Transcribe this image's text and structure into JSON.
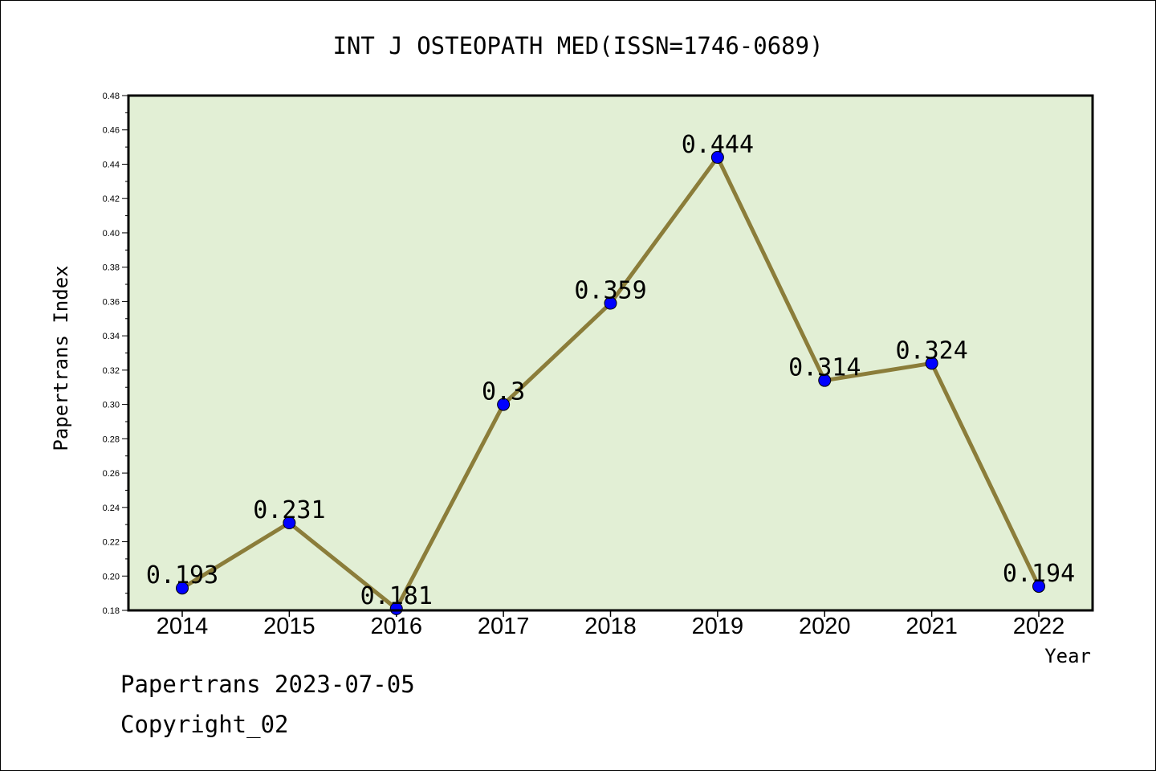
{
  "chart_data": {
    "type": "line",
    "title": "INT J OSTEOPATH MED(ISSN=1746-0689)",
    "xlabel": "Year",
    "ylabel": "Papertrans Index",
    "categories": [
      "2014",
      "2015",
      "2016",
      "2017",
      "2018",
      "2019",
      "2020",
      "2021",
      "2022"
    ],
    "values": [
      0.193,
      0.231,
      0.181,
      0.3,
      0.359,
      0.444,
      0.314,
      0.324,
      0.194
    ],
    "data_labels": [
      "0.193",
      "0.231",
      "0.181",
      "0.3",
      "0.359",
      "0.444",
      "0.314",
      "0.324",
      "0.194"
    ],
    "ylim": [
      0.18,
      0.48
    ],
    "yticks": [
      "0.18",
      "0.20",
      "0.22",
      "0.24",
      "0.26",
      "0.28",
      "0.30",
      "0.32",
      "0.34",
      "0.36",
      "0.38",
      "0.40",
      "0.42",
      "0.44",
      "0.46",
      "0.48"
    ],
    "grid": false,
    "legend": "none",
    "colors": {
      "line": "#8b7d3a",
      "marker": "#0000ff",
      "plot_background": "#e2efd5",
      "axes": "#000000"
    }
  },
  "footer": {
    "source": "Papertrans 2023-07-05",
    "copyright": "Copyright_02"
  }
}
